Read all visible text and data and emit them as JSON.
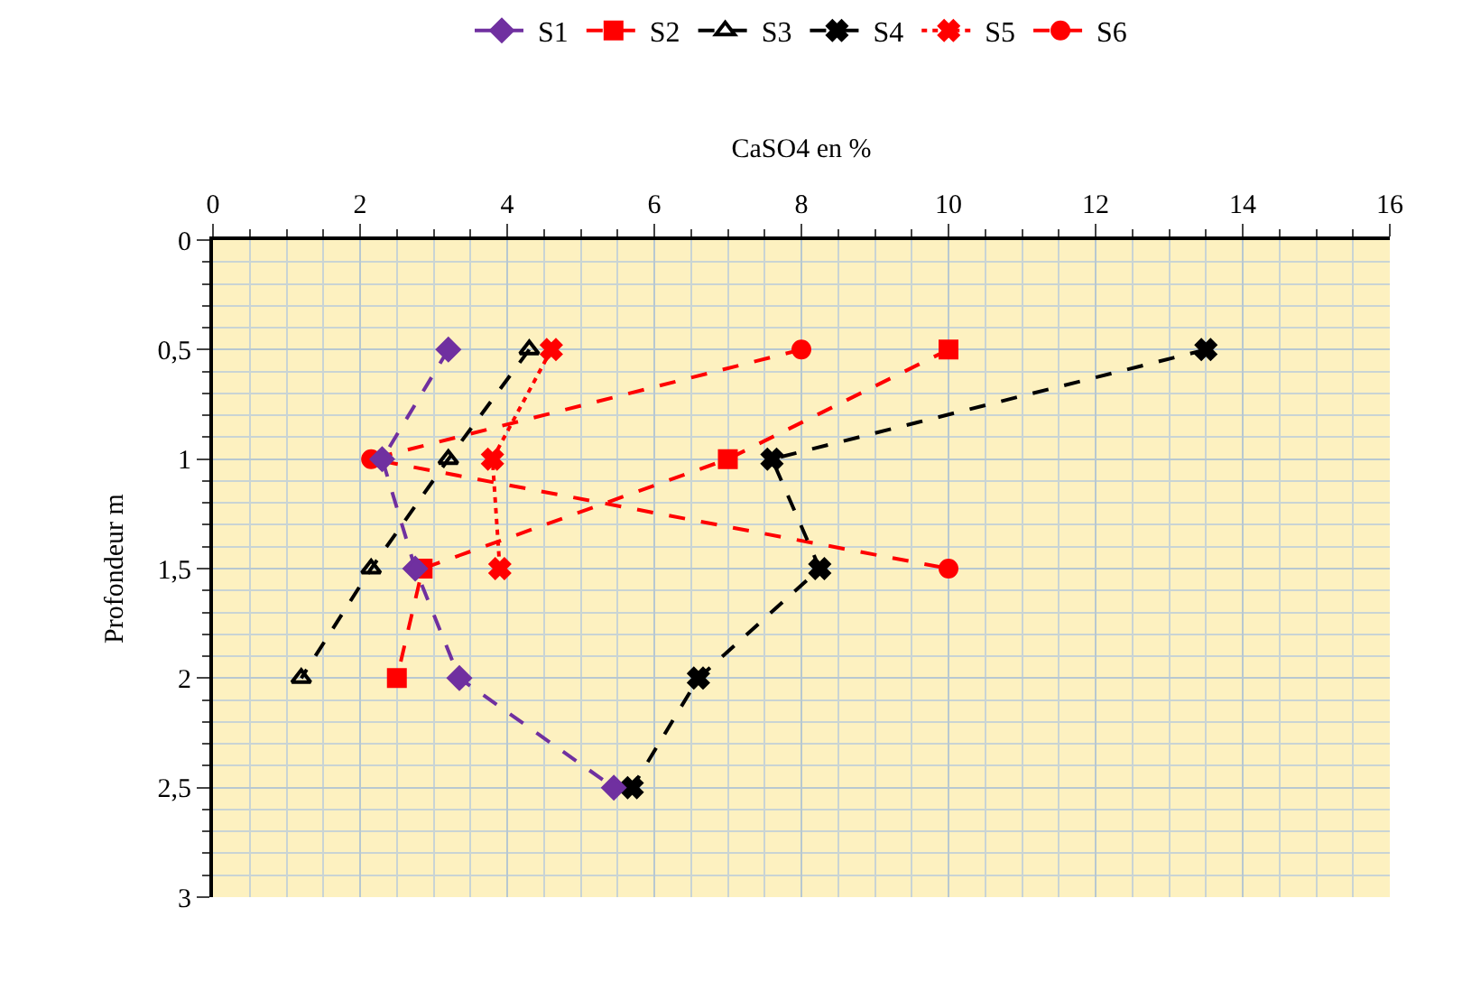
{
  "chart_data": {
    "type": "line",
    "xlabel": "CaSO4 en %",
    "ylabel": "Profondeur m",
    "xlim": [
      0,
      16
    ],
    "xticks": [
      0,
      2,
      4,
      6,
      8,
      10,
      12,
      14,
      16
    ],
    "ylim": [
      3,
      0
    ],
    "yticks": [
      0,
      {
        "value": 0.5,
        "label": "0,5"
      },
      1,
      {
        "value": 1.5,
        "label": "1,5"
      },
      2,
      {
        "value": 2.5,
        "label": "2,5"
      },
      3
    ],
    "grid": true,
    "legend": "top",
    "series": [
      {
        "name": "S1",
        "color": "#7030a0",
        "marker": "diamond",
        "line_style": "dashed",
        "x": [
          3.2,
          2.3,
          2.75,
          3.35,
          5.45
        ],
        "values": [
          0.5,
          1,
          1.5,
          2,
          2.5
        ]
      },
      {
        "name": "S2",
        "color": "#ff0000",
        "marker": "square",
        "line_style": "dashed",
        "x": [
          10,
          7,
          2.85,
          2.5
        ],
        "values": [
          0.5,
          1,
          1.5,
          2
        ]
      },
      {
        "name": "S3",
        "color": "#000000",
        "marker": "triangle",
        "line_style": "dashed",
        "x": [
          4.3,
          3.2,
          2.15,
          1.2
        ],
        "values": [
          0.5,
          1,
          1.5,
          2
        ]
      },
      {
        "name": "S4",
        "color": "#000000",
        "marker": "cross",
        "line_style": "dashed",
        "x": [
          13.5,
          7.6,
          8.25,
          6.6,
          5.7
        ],
        "values": [
          0.5,
          1,
          1.5,
          2,
          2.5
        ]
      },
      {
        "name": "S5",
        "color": "#ff0000",
        "marker": "cross",
        "line_style": "dotted",
        "x": [
          4.6,
          3.8,
          3.9
        ],
        "values": [
          0.5,
          1,
          1.5
        ]
      },
      {
        "name": "S6",
        "color": "#ff0000",
        "marker": "circle",
        "line_style": "dashed",
        "x": [
          8.0,
          2.15,
          10.0
        ],
        "values": [
          0.5,
          1,
          1.5
        ]
      }
    ]
  }
}
